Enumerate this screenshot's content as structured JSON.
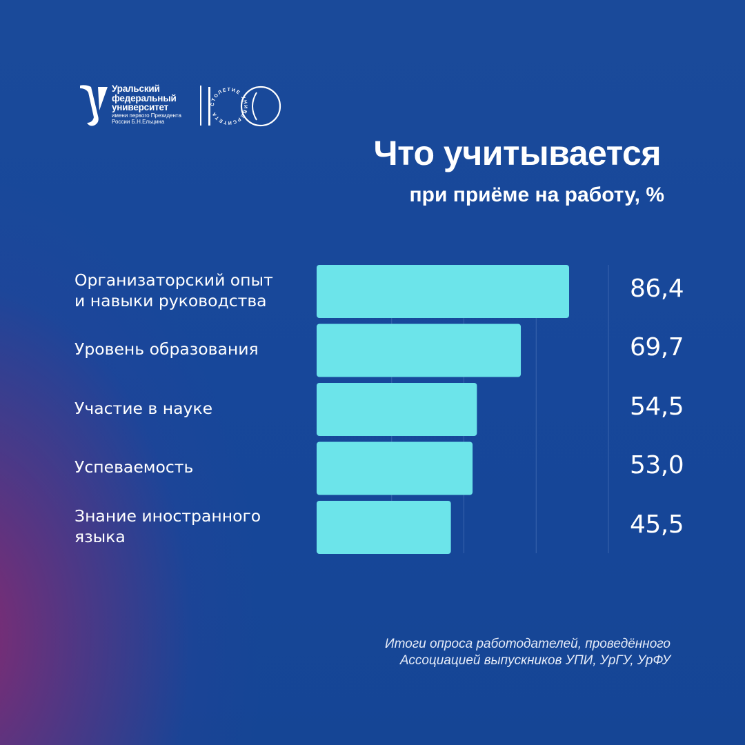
{
  "logo": {
    "line1": "Уральский",
    "line2": "федеральный",
    "line3": "университет",
    "small1": "имени первого Президента",
    "small2": "России Б.Н.Ельцина",
    "ring_text": "СТОЛЕТИЕ УНИВЕРСИТЕТА"
  },
  "header": {
    "title": "Что учитывается",
    "subtitle": "при приёме на работу, %"
  },
  "chart_data": {
    "type": "bar",
    "orientation": "horizontal",
    "categories": [
      "Организаторский опыт\nи навыки руководства",
      "Уровень образования",
      "Участие в науке",
      "Успеваемость",
      "Знание иностранного\nязыка"
    ],
    "values": [
      86.4,
      69.7,
      54.5,
      53.0,
      45.5
    ],
    "value_labels": [
      "86,4",
      "69,7",
      "54,5",
      "53,0",
      "45,5"
    ],
    "xlim": [
      0,
      100
    ],
    "grid": true,
    "legend": "none",
    "bar_color": "#6ce4ea",
    "gridline_color": "#3a64ad"
  },
  "footer": {
    "source_line1": "Итоги опроса работодателей, проведённого",
    "source_line2": "Ассоциацией выпускников УПИ, УрГУ, УрФУ"
  }
}
